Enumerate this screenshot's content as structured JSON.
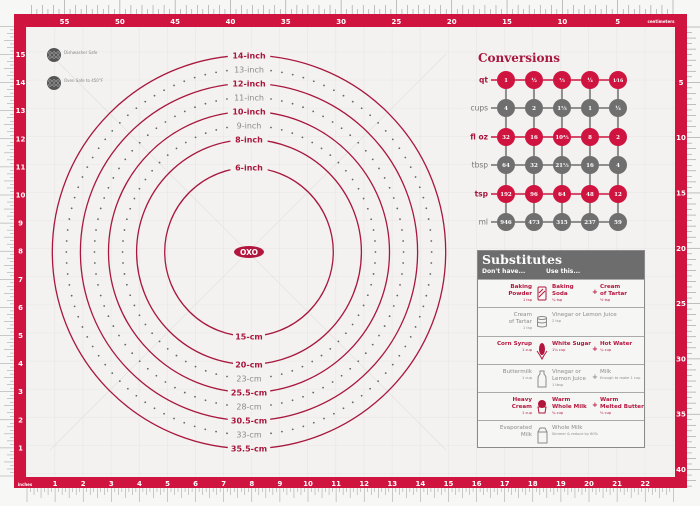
{
  "colors": {
    "frame_red": "#cf1440",
    "label_red": "#a8173e",
    "gray": "#777777",
    "mat_bg": "#f3f2f0"
  },
  "rulers": {
    "top_unit": "centimeters",
    "top_labels": [
      55,
      50,
      45,
      40,
      35,
      30,
      25,
      20,
      15,
      10,
      5
    ],
    "right_labels": [
      5,
      10,
      15,
      20,
      25,
      30,
      35,
      40
    ],
    "left_labels": [
      15,
      14,
      13,
      12,
      11,
      10,
      9,
      8,
      7,
      6,
      5,
      4,
      3,
      2,
      1
    ],
    "bottom_unit": "inches",
    "bottom_labels": [
      1,
      2,
      3,
      4,
      5,
      6,
      7,
      8,
      9,
      10,
      11,
      12,
      13,
      14,
      15,
      16,
      17,
      18,
      19,
      20,
      21,
      22
    ]
  },
  "badges": [
    {
      "icon": "dishwasher-icon",
      "text": "Dishwasher Safe"
    },
    {
      "icon": "oven-icon",
      "text": "Oven Safe to 450°F"
    }
  ],
  "logo": "OXO",
  "circles": [
    {
      "inch": 14,
      "inch_label": "14-inch",
      "cm_label": "35.5-cm",
      "style": "solid"
    },
    {
      "inch": 13,
      "inch_label": "13-inch",
      "cm_label": "33-cm",
      "style": "dotted"
    },
    {
      "inch": 12,
      "inch_label": "12-inch",
      "cm_label": "30.5-cm",
      "style": "solid"
    },
    {
      "inch": 11,
      "inch_label": "11-inch",
      "cm_label": "28-cm",
      "style": "dotted"
    },
    {
      "inch": 10,
      "inch_label": "10-inch",
      "cm_label": "25.5-cm",
      "style": "solid"
    },
    {
      "inch": 9,
      "inch_label": "9-inch",
      "cm_label": "23-cm",
      "style": "dotted"
    },
    {
      "inch": 8,
      "inch_label": "8-inch",
      "cm_label": "20-cm",
      "style": "solid"
    },
    {
      "inch": 6,
      "inch_label": "6-inch",
      "cm_label": "15-cm",
      "style": "solid"
    }
  ],
  "conversions": {
    "title": "Conversions",
    "rows": [
      {
        "unit": "qt",
        "color": "red",
        "values": [
          "1",
          "½",
          "⅓",
          "¼",
          "1⁄16"
        ]
      },
      {
        "unit": "cups",
        "color": "gray",
        "values": [
          "4",
          "2",
          "1⅓",
          "1",
          "¼"
        ]
      },
      {
        "unit": "fl oz",
        "color": "red",
        "values": [
          "32",
          "16",
          "10⅔",
          "8",
          "2"
        ]
      },
      {
        "unit": "tbsp",
        "color": "gray",
        "values": [
          "64",
          "32",
          "21⅓",
          "16",
          "4"
        ]
      },
      {
        "unit": "tsp",
        "color": "red",
        "values": [
          "192",
          "96",
          "64",
          "48",
          "12"
        ]
      },
      {
        "unit": "ml",
        "color": "gray",
        "values": [
          "946",
          "473",
          "315",
          "237",
          "59"
        ]
      }
    ]
  },
  "substitutes": {
    "title": "Substitutes",
    "col_have": "Don't have...",
    "col_use": "Use this...",
    "rows": [
      {
        "color": "red",
        "icon": "baking-powder-can-icon",
        "have": [
          "Baking",
          "Powder"
        ],
        "have_qty": "1 tsp",
        "use": [
          "Baking",
          "Soda"
        ],
        "use_qty": "¼ tsp",
        "use2": [
          "Cream",
          "of Tartar"
        ],
        "use2_qty": "½ tsp"
      },
      {
        "color": "gray",
        "icon": "cream-of-tartar-jar-icon",
        "have": [
          "Cream",
          "of Tartar"
        ],
        "have_qty": "1 tsp",
        "use": [
          "Vinegar or Lemon Juice"
        ],
        "use_qty": "2 tsp"
      },
      {
        "color": "red",
        "icon": "corn-icon",
        "have": [
          "Corn Syrup"
        ],
        "have_qty": "1 cup",
        "use": [
          "White Sugar"
        ],
        "use_qty": "1¼ cup",
        "use2": [
          "Hot Water"
        ],
        "use2_qty": "¼ cup"
      },
      {
        "color": "gray",
        "icon": "milk-bottle-icon",
        "have": [
          "Buttermilk"
        ],
        "have_qty": "1 cup",
        "use": [
          "Vinegar or",
          "Lemon Juice"
        ],
        "use_qty": "1 tbsp",
        "use2": [
          "Milk"
        ],
        "use2_qty": "Enough to make 1 cup"
      },
      {
        "color": "red",
        "icon": "cupcake-icon",
        "have": [
          "Heavy",
          "Cream"
        ],
        "have_qty": "1 cup",
        "use": [
          "Warm",
          "Whole Milk"
        ],
        "use_qty": "¾ cup",
        "use2": [
          "Warm",
          "Melted Butter"
        ],
        "use2_qty": "⅓ cup"
      },
      {
        "color": "gray",
        "icon": "milk-carton-icon",
        "have": [
          "Evaporated",
          "Milk"
        ],
        "have_qty": "",
        "use": [
          "Whole Milk"
        ],
        "use_qty": "Simmer & reduce by 60%"
      }
    ]
  }
}
